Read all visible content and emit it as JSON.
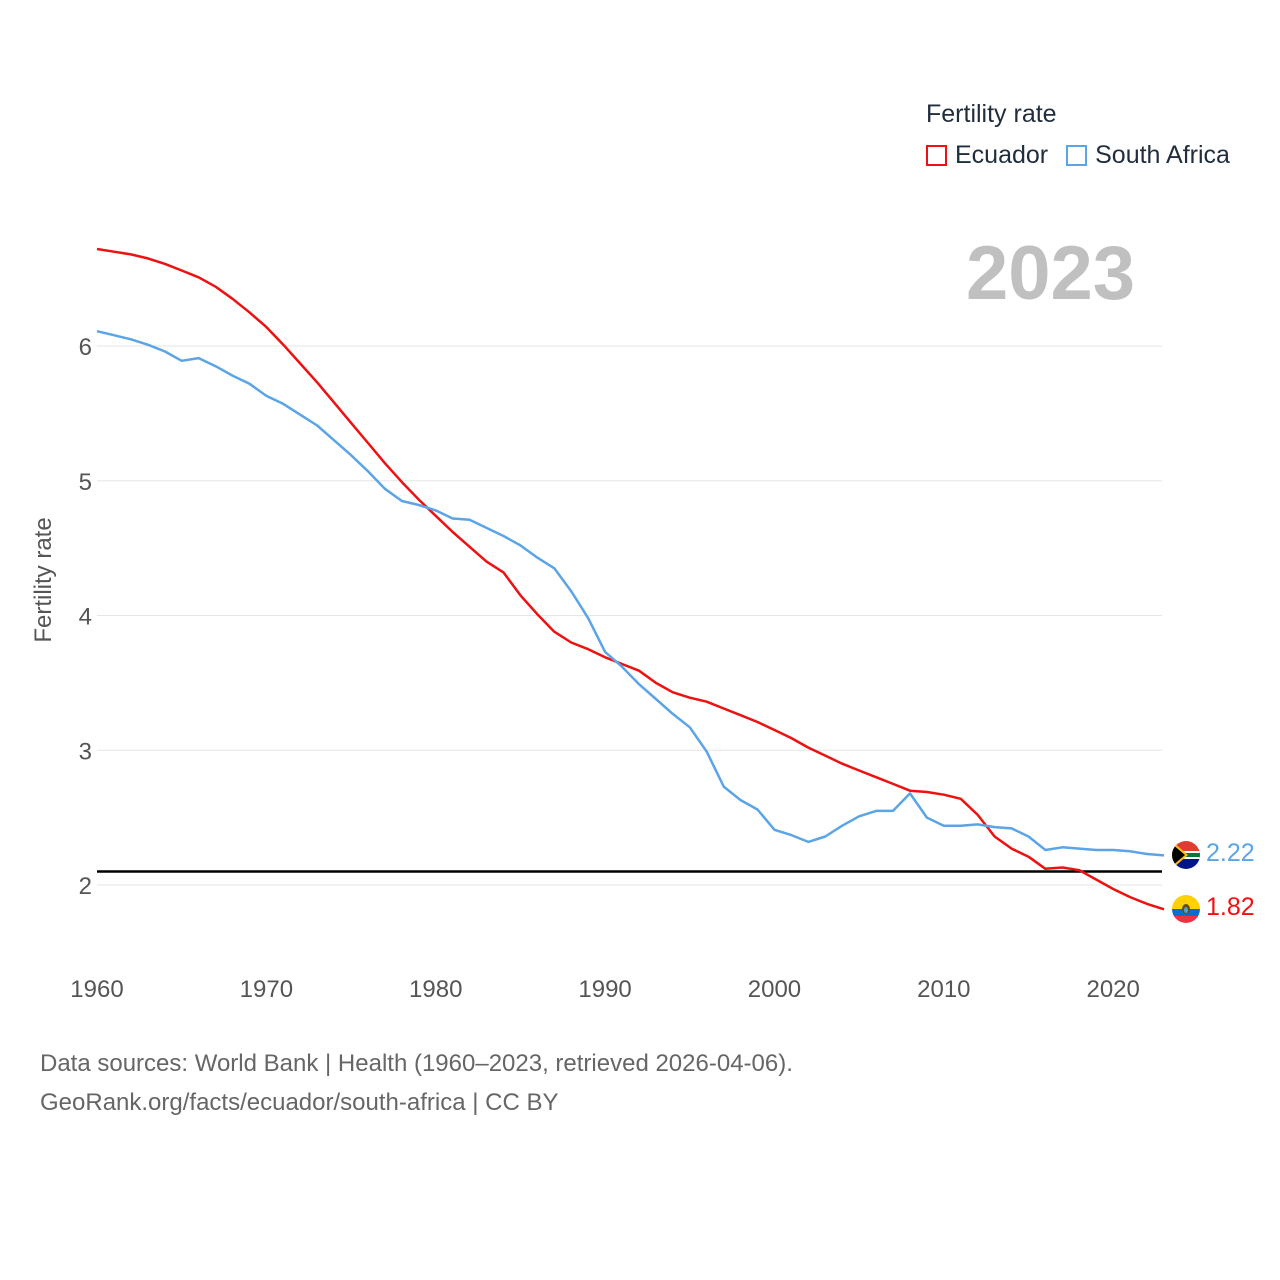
{
  "legend": {
    "title": "Fertility rate",
    "items": [
      "Ecuador",
      "South Africa"
    ]
  },
  "year_label": "2023",
  "source": {
    "line1": "Data sources: World Bank | Health (1960–2023, retrieved 2026-04-06).",
    "line2": "GeoRank.org/facts/ecuador/south-africa | CC BY"
  },
  "chart_data": {
    "type": "line",
    "title": "Fertility rate",
    "xlabel": "",
    "ylabel": "Fertility rate",
    "xlim": [
      1960,
      2023
    ],
    "ylim": [
      1.5,
      7.0
    ],
    "x_ticks": [
      1960,
      1970,
      1980,
      1990,
      2000,
      2010,
      2020
    ],
    "y_ticks": [
      2,
      3,
      4,
      5,
      6
    ],
    "grid": true,
    "reference_line": 2.1,
    "x": [
      1960,
      1961,
      1962,
      1963,
      1964,
      1965,
      1966,
      1967,
      1968,
      1969,
      1970,
      1971,
      1972,
      1973,
      1974,
      1975,
      1976,
      1977,
      1978,
      1979,
      1980,
      1981,
      1982,
      1983,
      1984,
      1985,
      1986,
      1987,
      1988,
      1989,
      1990,
      1991,
      1992,
      1993,
      1994,
      1995,
      1996,
      1997,
      1998,
      1999,
      2000,
      2001,
      2002,
      2003,
      2004,
      2005,
      2006,
      2007,
      2008,
      2009,
      2010,
      2011,
      2012,
      2013,
      2014,
      2015,
      2016,
      2017,
      2018,
      2019,
      2020,
      2021,
      2022,
      2023
    ],
    "series": [
      {
        "name": "Ecuador",
        "color": "#ee1111",
        "end_label": "1.82",
        "values": [
          6.72,
          6.7,
          6.68,
          6.65,
          6.61,
          6.56,
          6.51,
          6.44,
          6.35,
          6.25,
          6.14,
          6.01,
          5.87,
          5.73,
          5.58,
          5.43,
          5.28,
          5.13,
          4.99,
          4.86,
          4.74,
          4.62,
          4.51,
          4.4,
          4.32,
          4.15,
          4.01,
          3.88,
          3.8,
          3.75,
          3.69,
          3.64,
          3.59,
          3.5,
          3.43,
          3.39,
          3.36,
          3.31,
          3.26,
          3.21,
          3.15,
          3.09,
          3.02,
          2.96,
          2.9,
          2.85,
          2.8,
          2.75,
          2.7,
          2.69,
          2.67,
          2.64,
          2.52,
          2.36,
          2.27,
          2.21,
          2.12,
          2.13,
          2.11,
          2.04,
          1.97,
          1.91,
          1.86,
          1.82
        ]
      },
      {
        "name": "South Africa",
        "color": "#5ba4e6",
        "end_label": "2.22",
        "values": [
          6.11,
          6.08,
          6.05,
          6.01,
          5.96,
          5.89,
          5.91,
          5.85,
          5.78,
          5.72,
          5.63,
          5.57,
          5.49,
          5.41,
          5.3,
          5.19,
          5.07,
          4.94,
          4.85,
          4.82,
          4.78,
          4.72,
          4.71,
          4.65,
          4.59,
          4.52,
          4.43,
          4.35,
          4.18,
          3.98,
          3.73,
          3.62,
          3.49,
          3.38,
          3.27,
          3.17,
          2.99,
          2.73,
          2.63,
          2.56,
          2.41,
          2.37,
          2.32,
          2.36,
          2.44,
          2.51,
          2.55,
          2.55,
          2.68,
          2.5,
          2.44,
          2.44,
          2.45,
          2.43,
          2.42,
          2.36,
          2.26,
          2.28,
          2.27,
          2.26,
          2.26,
          2.25,
          2.23,
          2.22
        ]
      }
    ]
  }
}
